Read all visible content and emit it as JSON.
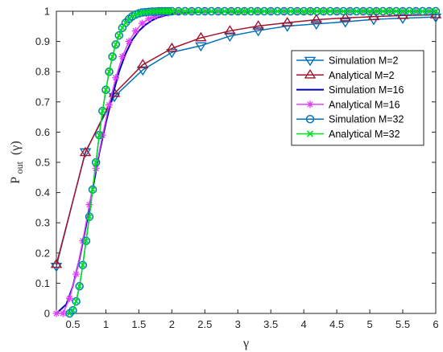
{
  "chart_data": {
    "type": "line",
    "xlabel": "γ",
    "ylabel_main": "P",
    "ylabel_sub": "out",
    "ylabel_arg": "(γ)",
    "xlim": [
      0.25,
      6
    ],
    "ylim": [
      0,
      1
    ],
    "grid": false,
    "legend_position": "right",
    "x_ticks": [
      0.5,
      1,
      1.5,
      2,
      2.5,
      3,
      3.5,
      4,
      4.5,
      5,
      5.5,
      6
    ],
    "x_tick_labels": [
      "0.5",
      "1",
      "1.5",
      "2",
      "2.5",
      "3",
      "3.5",
      "4",
      "4.5",
      "5",
      "5.5",
      "6"
    ],
    "y_ticks": [
      0,
      0.1,
      0.2,
      0.3,
      0.4,
      0.5,
      0.6,
      0.7,
      0.8,
      0.9,
      1
    ],
    "y_tick_labels": [
      "0",
      "0.1",
      "0.2",
      "0.3",
      "0.4",
      "0.5",
      "0.6",
      "0.7",
      "0.8",
      "0.9",
      "1"
    ],
    "series": [
      {
        "name": "Simulation M=2",
        "color": "#0072BD",
        "marker": "triangle-down",
        "x": [
          0.25,
          0.69,
          1.13,
          1.56,
          2.0,
          2.44,
          2.88,
          3.31,
          3.75,
          4.19,
          4.63,
          5.06,
          5.5,
          6.0
        ],
        "y": [
          0.156,
          0.535,
          0.718,
          0.806,
          0.864,
          0.886,
          0.918,
          0.936,
          0.951,
          0.958,
          0.965,
          0.973,
          0.977,
          0.981
        ]
      },
      {
        "name": "Analytical M=2",
        "color": "#A2142F",
        "marker": "triangle-up",
        "x": [
          0.25,
          0.69,
          1.13,
          1.56,
          2.0,
          2.44,
          2.88,
          3.31,
          3.75,
          4.19,
          4.63,
          5.06,
          5.5,
          6.0
        ],
        "y": [
          0.162,
          0.532,
          0.728,
          0.823,
          0.877,
          0.912,
          0.935,
          0.951,
          0.962,
          0.972,
          0.978,
          0.982,
          0.986,
          0.988
        ]
      },
      {
        "name": "Simulation M=16",
        "color": "#0000B0",
        "marker": "none",
        "x": [
          0.25,
          0.4,
          0.5,
          0.6,
          0.7,
          0.8,
          0.9,
          1.0,
          1.1,
          1.2,
          1.3,
          1.4,
          1.5,
          1.6,
          1.7,
          1.8,
          1.9,
          2.0,
          2.2,
          2.5,
          3.0,
          4.0,
          6.0
        ],
        "y": [
          0.0,
          0.03,
          0.09,
          0.18,
          0.29,
          0.41,
          0.53,
          0.63,
          0.72,
          0.8,
          0.86,
          0.905,
          0.935,
          0.955,
          0.97,
          0.98,
          0.986,
          0.99,
          0.995,
          0.998,
          0.999,
          1.0,
          1.0
        ]
      },
      {
        "name": "Analytical M=16",
        "color": "#E040FB",
        "marker": "star",
        "x": [
          0.25,
          0.35,
          0.45,
          0.55,
          0.65,
          0.75,
          0.85,
          0.95,
          1.05,
          1.15,
          1.25,
          1.35,
          1.45,
          1.55,
          1.65,
          1.75,
          1.85,
          1.95,
          2.1,
          2.3,
          2.5,
          2.7,
          2.9,
          3.1,
          3.3,
          3.5,
          3.7,
          3.9,
          4.1,
          4.3,
          4.5,
          4.7,
          4.9,
          5.1,
          5.3,
          5.5,
          5.7,
          5.9
        ],
        "y": [
          0.0,
          0.0,
          0.05,
          0.13,
          0.24,
          0.36,
          0.48,
          0.59,
          0.69,
          0.78,
          0.85,
          0.9,
          0.935,
          0.96,
          0.975,
          0.984,
          0.99,
          0.994,
          0.997,
          0.999,
          1.0,
          1.0,
          1.0,
          1.0,
          1.0,
          1.0,
          1.0,
          1.0,
          1.0,
          1.0,
          1.0,
          1.0,
          1.0,
          1.0,
          1.0,
          1.0,
          1.0,
          1.0
        ]
      },
      {
        "name": "Simulation M=32",
        "color": "#0072BD",
        "marker": "circle",
        "x": [
          0.45,
          0.5,
          0.55,
          0.6,
          0.65,
          0.7,
          0.75,
          0.8,
          0.85,
          0.9,
          0.95,
          1.0,
          1.05,
          1.1,
          1.15,
          1.2,
          1.25,
          1.3,
          1.35,
          1.4,
          1.45,
          1.5,
          1.55,
          1.6,
          1.65,
          1.7,
          1.75,
          1.8,
          1.85,
          1.9,
          1.95,
          2.0,
          2.1,
          2.2,
          2.3,
          2.4,
          2.5,
          2.6,
          2.7,
          2.8,
          2.9,
          3.0,
          3.1,
          3.2,
          3.3,
          3.4,
          3.5,
          3.6,
          3.7,
          3.8,
          3.9,
          4.0,
          4.1,
          4.2,
          4.3,
          4.4,
          4.5,
          4.6,
          4.7,
          4.8,
          4.9,
          5.0,
          5.1,
          5.2,
          5.3,
          5.4,
          5.5,
          5.6,
          5.7,
          5.8,
          5.9,
          6.0
        ],
        "y": [
          0.0,
          0.01,
          0.04,
          0.09,
          0.16,
          0.24,
          0.32,
          0.41,
          0.5,
          0.59,
          0.67,
          0.74,
          0.8,
          0.85,
          0.89,
          0.92,
          0.945,
          0.962,
          0.974,
          0.983,
          0.989,
          0.993,
          0.996,
          0.997,
          0.998,
          0.999,
          0.999,
          1.0,
          1.0,
          1.0,
          1.0,
          1.0,
          1.0,
          1.0,
          1.0,
          1.0,
          1.0,
          1.0,
          1.0,
          1.0,
          1.0,
          1.0,
          1.0,
          1.0,
          1.0,
          1.0,
          1.0,
          1.0,
          1.0,
          1.0,
          1.0,
          1.0,
          1.0,
          1.0,
          1.0,
          1.0,
          1.0,
          1.0,
          1.0,
          1.0,
          1.0,
          1.0,
          1.0,
          1.0,
          1.0,
          1.0,
          1.0,
          1.0,
          1.0,
          1.0,
          1.0,
          1.0
        ]
      },
      {
        "name": "Analytical M=32",
        "color": "#00E020",
        "marker": "x",
        "x": [
          0.45,
          0.5,
          0.55,
          0.6,
          0.65,
          0.7,
          0.75,
          0.8,
          0.85,
          0.9,
          0.95,
          1.0,
          1.05,
          1.1,
          1.15,
          1.2,
          1.25,
          1.3,
          1.35,
          1.4,
          1.45,
          1.5,
          1.55,
          1.6,
          1.65,
          1.7,
          1.75,
          1.8,
          1.85,
          1.9,
          1.95,
          2.0,
          2.1,
          2.2,
          2.3,
          2.4,
          2.5,
          2.6,
          2.7,
          2.8,
          2.9,
          3.0,
          3.1,
          3.2,
          3.3,
          3.4,
          3.5,
          3.6,
          3.7,
          3.8,
          3.9,
          4.0,
          4.1,
          4.2,
          4.3,
          4.4,
          4.5,
          4.6,
          4.7,
          4.8,
          4.9,
          5.0,
          5.1,
          5.2,
          5.3,
          5.4,
          5.5,
          5.6,
          5.7,
          5.8,
          5.9,
          6.0
        ],
        "y": [
          0.0,
          0.01,
          0.04,
          0.09,
          0.16,
          0.24,
          0.32,
          0.41,
          0.5,
          0.59,
          0.67,
          0.74,
          0.8,
          0.85,
          0.89,
          0.92,
          0.945,
          0.962,
          0.974,
          0.983,
          0.989,
          0.993,
          0.996,
          0.997,
          0.998,
          0.999,
          0.999,
          1.0,
          1.0,
          1.0,
          1.0,
          1.0,
          1.0,
          1.0,
          1.0,
          1.0,
          1.0,
          1.0,
          1.0,
          1.0,
          1.0,
          1.0,
          1.0,
          1.0,
          1.0,
          1.0,
          1.0,
          1.0,
          1.0,
          1.0,
          1.0,
          1.0,
          1.0,
          1.0,
          1.0,
          1.0,
          1.0,
          1.0,
          1.0,
          1.0,
          1.0,
          1.0,
          1.0,
          1.0,
          1.0,
          1.0,
          1.0,
          1.0,
          1.0,
          1.0,
          1.0,
          1.0
        ]
      }
    ]
  }
}
